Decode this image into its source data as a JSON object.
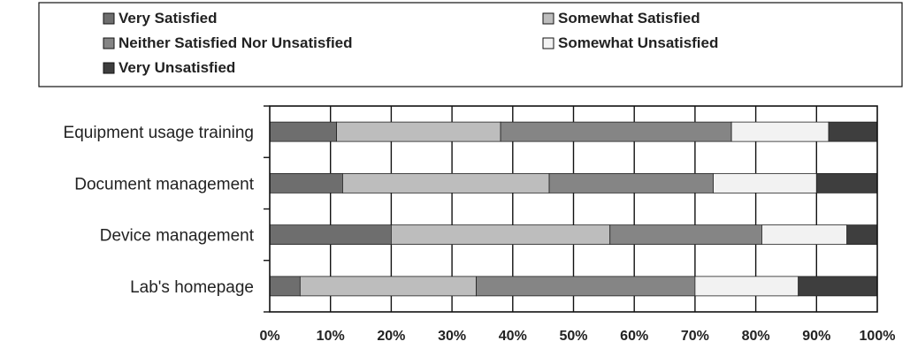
{
  "chart_data": {
    "type": "bar",
    "orientation": "horizontal",
    "stacked": true,
    "title": "",
    "xlabel": "",
    "ylabel": "",
    "xlim": [
      0,
      100
    ],
    "x_ticks": [
      "0%",
      "10%",
      "20%",
      "30%",
      "40%",
      "50%",
      "60%",
      "70%",
      "80%",
      "90%",
      "100%"
    ],
    "grid": true,
    "legend_position": "top",
    "categories": [
      "Equipment usage training",
      "Document management",
      "Device management",
      "Lab's homepage"
    ],
    "series": [
      {
        "name": "Very Satisfied",
        "color": "#6e6e6e",
        "values": [
          11,
          12,
          20,
          5
        ]
      },
      {
        "name": "Somewhat Satisfied",
        "color": "#bdbdbd",
        "values": [
          27,
          34,
          36,
          29
        ]
      },
      {
        "name": "Neither Satisfied Nor Unsatisfied",
        "color": "#858585",
        "values": [
          38,
          27,
          25,
          36
        ]
      },
      {
        "name": "Somewhat Unsatisfied",
        "color": "#f2f2f2",
        "values": [
          16,
          17,
          14,
          17
        ]
      },
      {
        "name": "Very Unsatisfied",
        "color": "#3e3e3e",
        "values": [
          8,
          10,
          5,
          13
        ]
      }
    ]
  }
}
